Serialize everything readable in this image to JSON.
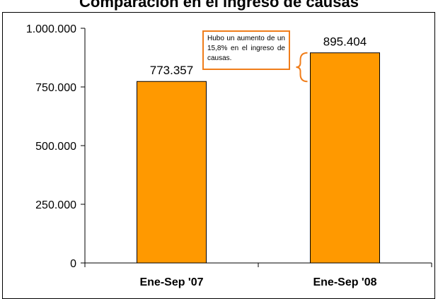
{
  "chart_data": {
    "type": "bar",
    "title": "Comparación en el ingreso de causas",
    "categories": [
      "Ene-Sep '07",
      "Ene-Sep '08"
    ],
    "values": [
      773357,
      895404
    ],
    "value_labels": [
      "773.357",
      "895.404"
    ],
    "y_ticks": [
      0,
      250000,
      500000,
      750000,
      1000000
    ],
    "y_tick_labels": [
      "0",
      "250.000",
      "500.000",
      "750.000",
      "1.000.000"
    ],
    "ylim": [
      0,
      1000000
    ],
    "xlabel": "",
    "ylabel": "",
    "grid": false,
    "bar_color": "#ff9900",
    "annotation": "Hubo un aumento de un 15,8% en el ingreso de causas."
  }
}
